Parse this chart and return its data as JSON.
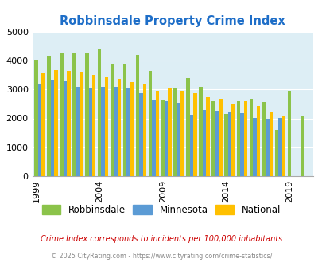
{
  "title": "Robbinsdale Property Crime Index",
  "years": [
    1999,
    2000,
    2001,
    2002,
    2003,
    2004,
    2005,
    2006,
    2007,
    2008,
    2009,
    2010,
    2011,
    2012,
    2013,
    2014,
    2015,
    2016,
    2017,
    2018,
    2019,
    2020
  ],
  "robbinsdale": [
    4020,
    4170,
    4280,
    4280,
    4260,
    4390,
    3880,
    3880,
    4190,
    3640,
    2640,
    3060,
    3380,
    3100,
    2590,
    2140,
    2600,
    2680,
    2560,
    1600,
    2960,
    2100
  ],
  "minnesota": [
    3190,
    3310,
    3290,
    3100,
    3050,
    3080,
    3080,
    3030,
    2870,
    2650,
    2590,
    2550,
    2120,
    2300,
    2260,
    2200,
    2180,
    2020,
    2000,
    2020,
    0,
    0
  ],
  "national": [
    3590,
    3670,
    3650,
    3600,
    3500,
    3450,
    3350,
    3260,
    3200,
    2960,
    3070,
    2940,
    2870,
    2720,
    2680,
    2490,
    2600,
    2420,
    2200,
    2100,
    0,
    0
  ],
  "colors": {
    "robbinsdale": "#8bc34a",
    "minnesota": "#5b9bd5",
    "national": "#ffc000"
  },
  "bg_color": "#ddeef5",
  "ylim": [
    0,
    5000
  ],
  "yticks": [
    0,
    1000,
    2000,
    3000,
    4000,
    5000
  ],
  "legend_labels": [
    "Robbinsdale",
    "Minnesota",
    "National"
  ],
  "subtitle": "Crime Index corresponds to incidents per 100,000 inhabitants",
  "footer": "© 2025 CityRating.com - https://www.cityrating.com/crime-statistics/",
  "subtitle_color": "#cc0000",
  "footer_color": "#888888",
  "title_color": "#1e6ec8",
  "tick_years": [
    1999,
    2004,
    2009,
    2014,
    2019
  ]
}
